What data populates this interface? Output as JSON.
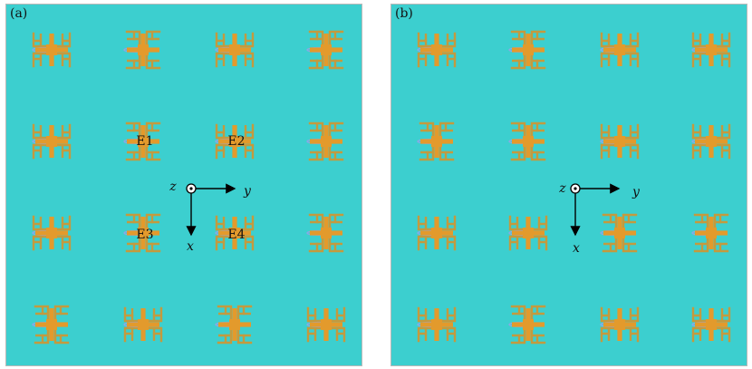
{
  "colors": {
    "substrate": "#3ccfcf",
    "ring": "#c49a3e",
    "cross": "#e39a2c",
    "slot": "#8fa6e6",
    "axes": "#000000"
  },
  "icons": {
    "unit_cell": "metasurface-unit-cell",
    "axis_out_of_plane": "dot-in-circle"
  },
  "panels": [
    {
      "label": "(a)",
      "axes": {
        "z": "z",
        "y": "y",
        "x": "x"
      },
      "elements": [
        "E1",
        "E2",
        "E3",
        "E4"
      ],
      "cells": [
        [
          "A",
          "B",
          "A",
          "B"
        ],
        [
          "A",
          "B",
          "A",
          "B"
        ],
        [
          "A",
          "B",
          "A",
          "B"
        ],
        [
          "B",
          "A",
          "B",
          "A"
        ]
      ]
    },
    {
      "label": "(b)",
      "axes": {
        "z": "z",
        "y": "y",
        "x": "x"
      },
      "cells": [
        [
          "A",
          "B",
          "A",
          "A"
        ],
        [
          "B",
          "B",
          "A",
          "A"
        ],
        [
          "A",
          "A",
          "B",
          "B"
        ],
        [
          "A",
          "B",
          "A",
          "A"
        ]
      ]
    }
  ]
}
